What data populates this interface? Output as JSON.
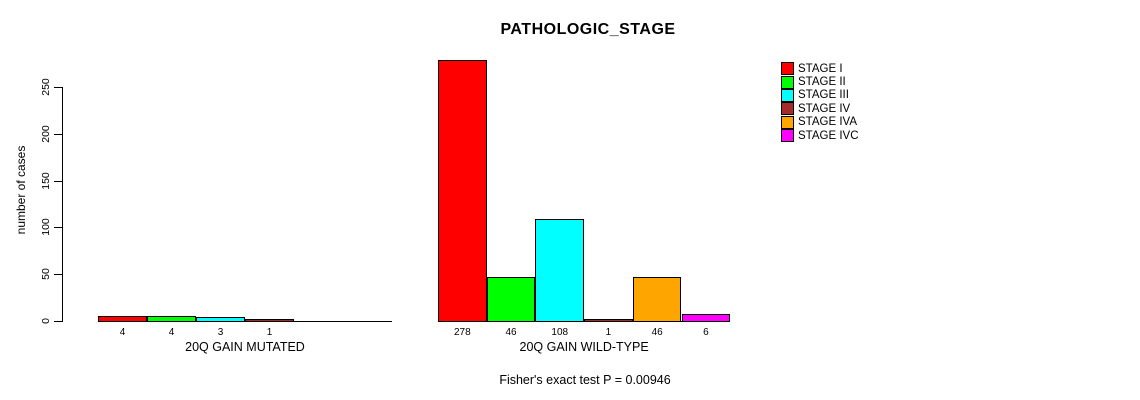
{
  "chart_data": {
    "type": "bar",
    "title": "PATHOLOGIC_STAGE",
    "ylabel": "number of cases",
    "xlabel": "",
    "ylim": [
      0,
      280
    ],
    "yticks": [
      0,
      50,
      100,
      150,
      200,
      250
    ],
    "grid": false,
    "legend_position": "right",
    "categories": [
      "20Q GAIN MUTATED",
      "20Q GAIN WILD-TYPE"
    ],
    "series": [
      {
        "name": "STAGE I",
        "color": "#FF0000",
        "values": [
          4,
          278
        ]
      },
      {
        "name": "STAGE II",
        "color": "#00FF00",
        "values": [
          4,
          46
        ]
      },
      {
        "name": "STAGE III",
        "color": "#00FFFF",
        "values": [
          3,
          108
        ]
      },
      {
        "name": "STAGE IV",
        "color": "#A52A2A",
        "values": [
          1,
          1
        ]
      },
      {
        "name": "STAGE IVA",
        "color": "#FFA500",
        "values": [
          0,
          46
        ]
      },
      {
        "name": "STAGE IVC",
        "color": "#FF00FF",
        "values": [
          0,
          6
        ]
      }
    ],
    "bar_value_labels": {
      "20Q GAIN MUTATED": [
        "4",
        "4",
        "3",
        "1"
      ],
      "20Q GAIN WILD-TYPE": [
        "278",
        "46",
        "108",
        "1",
        "46",
        "6"
      ]
    },
    "annotation": "Fisher's exact test P = 0.00946"
  }
}
